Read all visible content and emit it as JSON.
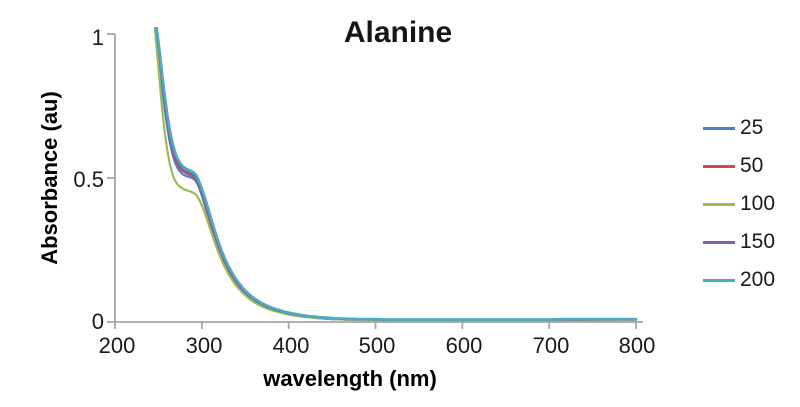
{
  "title": "Alanine",
  "axis_color": "#a6a6a6",
  "chart_data": {
    "type": "line",
    "title": "Alanine",
    "xlabel": "wavelength (nm)",
    "ylabel": "Absorbance (au)",
    "xlim": [
      200,
      800
    ],
    "ylim": [
      0,
      1
    ],
    "x_ticks": [
      200,
      300,
      400,
      500,
      600,
      700,
      800
    ],
    "y_ticks": [
      0,
      0.5,
      1
    ],
    "grid": false,
    "legend_position": "right",
    "x": [
      245,
      248,
      251,
      254,
      257,
      260,
      263,
      266,
      269,
      272,
      275,
      278,
      281,
      284,
      287,
      290,
      293,
      296,
      299,
      302,
      305,
      308,
      311,
      314,
      317,
      320,
      323,
      326,
      330,
      334,
      338,
      342,
      346,
      350,
      355,
      360,
      365,
      370,
      375,
      380,
      385,
      390,
      395,
      400,
      405,
      410,
      415,
      420,
      425,
      430,
      435,
      440,
      445,
      450,
      455,
      460,
      465,
      470,
      475,
      480,
      485,
      490,
      495,
      500,
      510,
      520,
      530,
      540,
      550,
      560,
      570,
      580,
      590,
      600,
      620,
      640,
      660,
      680,
      700,
      720,
      740,
      760,
      780,
      800
    ],
    "series": [
      {
        "name": "25",
        "color": "#4F81BD",
        "values": [
          1.06,
          0.98,
          0.9,
          0.82,
          0.745,
          0.68,
          0.625,
          0.585,
          0.555,
          0.535,
          0.522,
          0.513,
          0.508,
          0.505,
          0.502,
          0.498,
          0.49,
          0.472,
          0.448,
          0.42,
          0.39,
          0.36,
          0.33,
          0.3,
          0.272,
          0.247,
          0.224,
          0.203,
          0.178,
          0.157,
          0.138,
          0.122,
          0.108,
          0.096,
          0.083,
          0.072,
          0.063,
          0.055,
          0.049,
          0.043,
          0.038,
          0.034,
          0.03,
          0.027,
          0.024,
          0.022,
          0.02,
          0.018,
          0.016,
          0.015,
          0.013,
          0.012,
          0.011,
          0.01,
          0.0095,
          0.009,
          0.0085,
          0.008,
          0.008,
          0.0075,
          0.007,
          0.007,
          0.007,
          0.007,
          0.0065,
          0.006,
          0.006,
          0.006,
          0.006,
          0.006,
          0.006,
          0.006,
          0.006,
          0.006,
          0.006,
          0.006,
          0.006,
          0.006,
          0.006,
          0.007,
          0.007,
          0.007,
          0.007,
          0.008
        ]
      },
      {
        "name": "50",
        "color": "#C0504D",
        "values": [
          1.07,
          1.0,
          0.925,
          0.845,
          0.77,
          0.7,
          0.645,
          0.6,
          0.57,
          0.548,
          0.533,
          0.524,
          0.518,
          0.514,
          0.51,
          0.506,
          0.497,
          0.479,
          0.455,
          0.428,
          0.398,
          0.368,
          0.338,
          0.308,
          0.28,
          0.254,
          0.231,
          0.21,
          0.184,
          0.163,
          0.144,
          0.127,
          0.113,
          0.1,
          0.087,
          0.076,
          0.066,
          0.058,
          0.051,
          0.046,
          0.041,
          0.036,
          0.032,
          0.029,
          0.026,
          0.024,
          0.021,
          0.019,
          0.018,
          0.016,
          0.015,
          0.013,
          0.012,
          0.011,
          0.011,
          0.01,
          0.01,
          0.009,
          0.009,
          0.009,
          0.008,
          0.008,
          0.008,
          0.008,
          0.008,
          0.0075,
          0.007,
          0.007,
          0.007,
          0.007,
          0.007,
          0.007,
          0.007,
          0.007,
          0.007,
          0.007,
          0.007,
          0.007,
          0.007,
          0.008,
          0.008,
          0.008,
          0.008,
          0.009
        ]
      },
      {
        "name": "100",
        "color": "#9BBB59",
        "values": [
          1.05,
          0.95,
          0.85,
          0.75,
          0.665,
          0.6,
          0.55,
          0.515,
          0.492,
          0.478,
          0.469,
          0.463,
          0.459,
          0.456,
          0.453,
          0.449,
          0.443,
          0.43,
          0.412,
          0.39,
          0.365,
          0.338,
          0.311,
          0.284,
          0.258,
          0.235,
          0.213,
          0.194,
          0.17,
          0.15,
          0.132,
          0.117,
          0.104,
          0.092,
          0.08,
          0.069,
          0.06,
          0.053,
          0.047,
          0.041,
          0.037,
          0.033,
          0.029,
          0.026,
          0.023,
          0.021,
          0.019,
          0.017,
          0.016,
          0.014,
          0.013,
          0.012,
          0.011,
          0.01,
          0.01,
          0.009,
          0.009,
          0.008,
          0.008,
          0.008,
          0.007,
          0.007,
          0.007,
          0.007,
          0.007,
          0.006,
          0.006,
          0.006,
          0.006,
          0.006,
          0.006,
          0.006,
          0.006,
          0.006,
          0.006,
          0.006,
          0.006,
          0.006,
          0.006,
          0.007,
          0.007,
          0.007,
          0.007,
          0.007
        ]
      },
      {
        "name": "150",
        "color": "#8064A2",
        "values": [
          1.07,
          1.005,
          0.93,
          0.85,
          0.775,
          0.705,
          0.652,
          0.607,
          0.577,
          0.555,
          0.54,
          0.53,
          0.524,
          0.52,
          0.516,
          0.512,
          0.503,
          0.485,
          0.461,
          0.434,
          0.404,
          0.374,
          0.344,
          0.314,
          0.286,
          0.26,
          0.236,
          0.215,
          0.189,
          0.167,
          0.148,
          0.131,
          0.116,
          0.103,
          0.09,
          0.078,
          0.068,
          0.06,
          0.053,
          0.048,
          0.042,
          0.038,
          0.034,
          0.03,
          0.027,
          0.025,
          0.022,
          0.02,
          0.019,
          0.017,
          0.016,
          0.014,
          0.013,
          0.012,
          0.012,
          0.011,
          0.01,
          0.01,
          0.01,
          0.009,
          0.009,
          0.009,
          0.009,
          0.008,
          0.008,
          0.008,
          0.008,
          0.008,
          0.008,
          0.008,
          0.008,
          0.008,
          0.008,
          0.008,
          0.008,
          0.008,
          0.008,
          0.008,
          0.008,
          0.008,
          0.008,
          0.009,
          0.009,
          0.009
        ]
      },
      {
        "name": "200",
        "color": "#4BACC6",
        "values": [
          1.08,
          1.02,
          0.95,
          0.87,
          0.795,
          0.725,
          0.67,
          0.625,
          0.592,
          0.568,
          0.552,
          0.541,
          0.534,
          0.529,
          0.525,
          0.521,
          0.512,
          0.495,
          0.472,
          0.446,
          0.417,
          0.387,
          0.357,
          0.326,
          0.298,
          0.271,
          0.247,
          0.225,
          0.198,
          0.176,
          0.156,
          0.138,
          0.123,
          0.109,
          0.095,
          0.083,
          0.073,
          0.064,
          0.057,
          0.051,
          0.045,
          0.041,
          0.036,
          0.033,
          0.029,
          0.027,
          0.024,
          0.022,
          0.02,
          0.019,
          0.017,
          0.016,
          0.015,
          0.014,
          0.013,
          0.012,
          0.012,
          0.011,
          0.011,
          0.01,
          0.01,
          0.01,
          0.01,
          0.01,
          0.009,
          0.009,
          0.009,
          0.009,
          0.009,
          0.009,
          0.009,
          0.009,
          0.009,
          0.009,
          0.009,
          0.009,
          0.009,
          0.009,
          0.009,
          0.01,
          0.01,
          0.01,
          0.01,
          0.01
        ]
      }
    ]
  }
}
